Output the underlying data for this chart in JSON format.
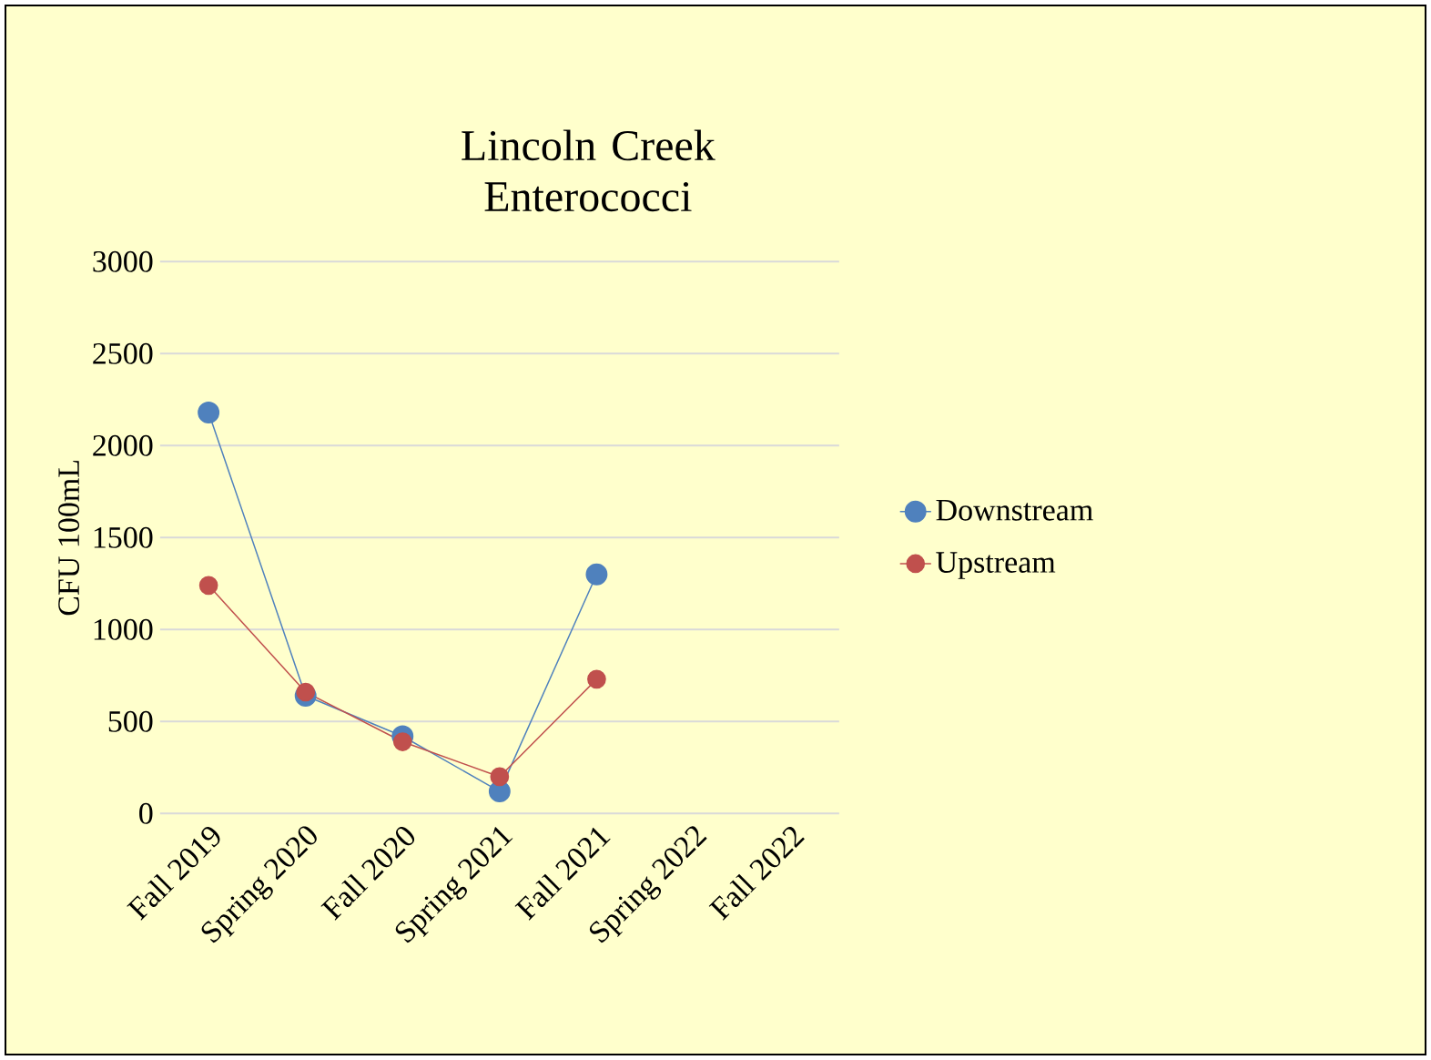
{
  "chart_data": {
    "type": "line",
    "title": "Lincoln Creek Enterococci",
    "ylabel": "CFU 100mL",
    "categories": [
      "Fall 2019",
      "Spring 2020",
      "Fall 2020",
      "Spring 2021",
      "Fall 2021",
      "Spring 2022",
      "Fall 2022"
    ],
    "series": [
      {
        "name": "Downstream",
        "color": "#4f81bd",
        "values": [
          2180,
          640,
          420,
          120,
          1300,
          null,
          null
        ]
      },
      {
        "name": "Upstream",
        "color": "#c0504d",
        "values": [
          1240,
          660,
          390,
          200,
          730,
          null,
          null
        ]
      }
    ],
    "ylim": [
      0,
      3000
    ],
    "yticks": [
      0,
      500,
      1000,
      1500,
      2000,
      2500,
      3000
    ],
    "grid": "y",
    "legend": "right",
    "marker": "circle",
    "line_style": "solid"
  }
}
